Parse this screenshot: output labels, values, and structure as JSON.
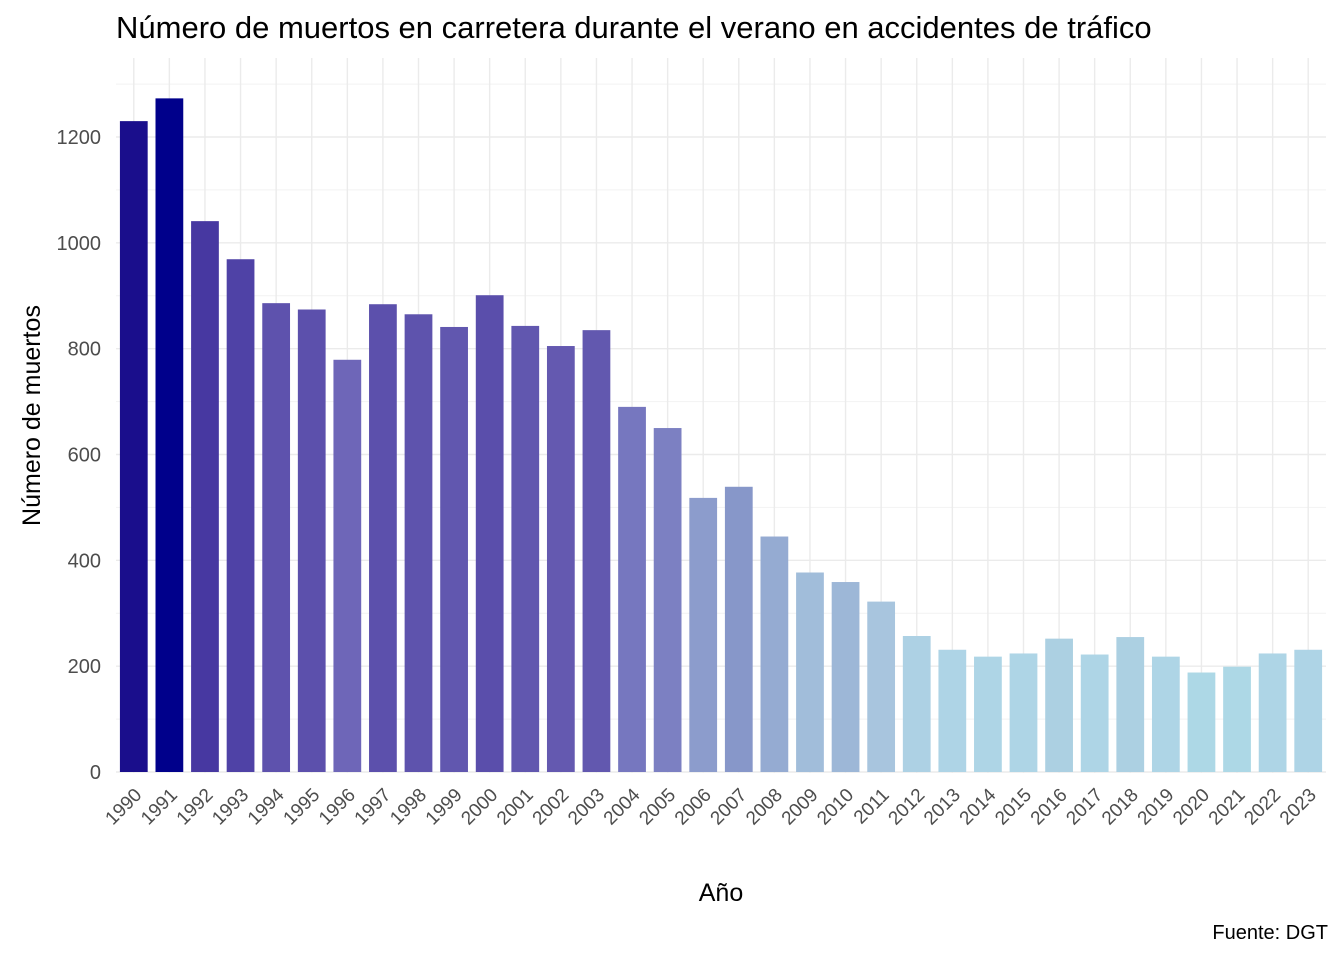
{
  "chart_data": {
    "type": "bar",
    "title": "Número de muertos en carretera durante el verano en accidentes de tráfico",
    "xlabel": "Año",
    "ylabel": "Número de muertos",
    "caption": "Fuente: DGT",
    "categories": [
      "1990",
      "1991",
      "1992",
      "1993",
      "1994",
      "1995",
      "1996",
      "1997",
      "1998",
      "1999",
      "2000",
      "2001",
      "2002",
      "2003",
      "2004",
      "2005",
      "2006",
      "2007",
      "2008",
      "2009",
      "2010",
      "2011",
      "2012",
      "2013",
      "2014",
      "2015",
      "2016",
      "2017",
      "2018",
      "2019",
      "2020",
      "2021",
      "2022",
      "2023"
    ],
    "values": [
      1230,
      1273,
      1041,
      969,
      886,
      874,
      779,
      884,
      865,
      841,
      901,
      843,
      805,
      835,
      690,
      650,
      518,
      539,
      445,
      377,
      359,
      322,
      257,
      231,
      218,
      224,
      252,
      222,
      255,
      218,
      188,
      199,
      224,
      231
    ],
    "colors": [
      "#1a0e8c",
      "#00008b",
      "#4738a1",
      "#4f42a6",
      "#5e52ad",
      "#5c50ac",
      "#6e66b8",
      "#5c50ac",
      "#5e53ad",
      "#6157af",
      "#5a4eab",
      "#6157af",
      "#6459b0",
      "#6258af",
      "#7677bf",
      "#7c80c2",
      "#8c9ccc",
      "#8797c9",
      "#95abd2",
      "#a1bdda",
      "#9db7d7",
      "#a8c5de",
      "#add1e4",
      "#aed4e6",
      "#aed5e6",
      "#aed5e6",
      "#acd0e2",
      "#aed5e6",
      "#acd0e2",
      "#aed5e6",
      "#add8e6",
      "#add8e6",
      "#aed5e6",
      "#aed4e6"
    ],
    "ylim": [
      0,
      1300
    ],
    "yticks": [
      0,
      200,
      400,
      600,
      800,
      1000,
      1200
    ],
    "grid": true,
    "legend": "none"
  }
}
